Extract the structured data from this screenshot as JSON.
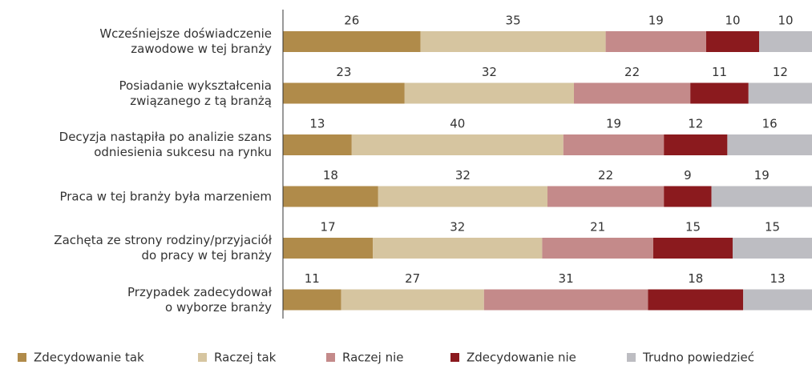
{
  "chart_data": {
    "type": "stacked-bar-horizontal",
    "categories": [
      "Wcześniejsze doświadczenie\nzawodowe w tej branży",
      "Posiadanie wykształcenia\nzwiązanego z tą branżą",
      "Decyzja nastąpiła po analizie szans\nodniesienia sukcesu na rynku",
      "Praca w tej branży była marzeniem",
      "Zachęta ze strony rodziny/przyjaciół\ndo pracy w tej branży",
      "Przypadek zadecydował\no wyborze branży"
    ],
    "series": [
      {
        "name": "Zdecydowanie tak",
        "color": "#b08b4a",
        "values": [
          26,
          23,
          13,
          18,
          17,
          11
        ]
      },
      {
        "name": "Raczej tak",
        "color": "#d6c5a0",
        "values": [
          35,
          32,
          40,
          32,
          32,
          27
        ]
      },
      {
        "name": "Raczej nie",
        "color": "#c48a8a",
        "values": [
          19,
          22,
          19,
          22,
          21,
          31
        ]
      },
      {
        "name": "Zdecydowanie nie",
        "color": "#8b1a1e",
        "values": [
          10,
          11,
          12,
          9,
          15,
          18
        ]
      },
      {
        "name": "Trudno powiedzieć",
        "color": "#bdbdc2",
        "values": [
          10,
          12,
          16,
          19,
          15,
          13
        ]
      }
    ],
    "xlim": [
      0,
      100
    ],
    "legend": "bottom"
  }
}
